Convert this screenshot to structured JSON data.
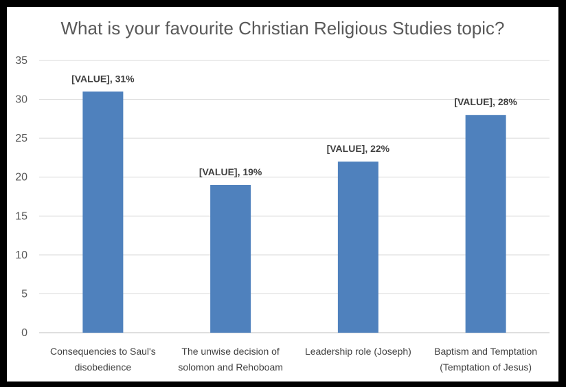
{
  "chart_data": {
    "type": "bar",
    "title": "What is your favourite Christian Religious Studies topic?",
    "xlabel": "",
    "ylabel": "",
    "ylim": [
      0,
      35
    ],
    "yticks": [
      0,
      5,
      10,
      15,
      20,
      25,
      30,
      35
    ],
    "grid": true,
    "legend": "none",
    "bar_color": "#4f81bd",
    "categories": [
      [
        "Consequencies to Saul's",
        "disobedience"
      ],
      [
        "The unwise decision of",
        "solomon and Rehoboam"
      ],
      [
        "Leadership role (Joseph)"
      ],
      [
        "Baptism and Temptation",
        "(Temptation of Jesus)"
      ]
    ],
    "values": [
      31,
      19,
      22,
      28
    ],
    "data_labels": [
      "[VALUE],  31%",
      "[VALUE],  19%",
      "[VALUE], 22%",
      "[VALUE],  28%"
    ]
  }
}
